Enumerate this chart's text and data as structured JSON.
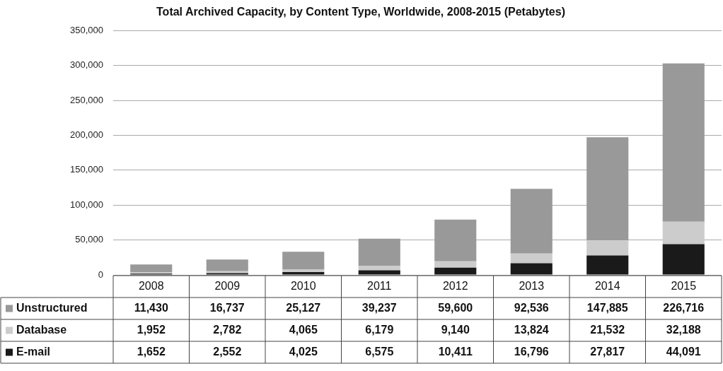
{
  "chart_data": {
    "type": "bar",
    "title": "Total Archived Capacity, by Content Type, Worldwide, 2008-2015 (Petabytes)",
    "categories": [
      "2008",
      "2009",
      "2010",
      "2011",
      "2012",
      "2013",
      "2014",
      "2015"
    ],
    "stacked": true,
    "legend": "bottom",
    "grid": "y",
    "ylim": [
      0,
      350000
    ],
    "yticks": [
      0,
      {
        "value": 50000,
        "label": "50,000"
      },
      {
        "value": 100000,
        "label": "100,000"
      },
      {
        "value": 150000,
        "label": "150,000"
      },
      {
        "value": 200000,
        "label": "200,000"
      },
      {
        "value": 250000,
        "label": "250,000"
      },
      {
        "value": 300000,
        "label": "300,000"
      },
      {
        "value": 350000,
        "label": "350,000"
      }
    ],
    "series": [
      {
        "name": "E-mail",
        "color": "#1a1a1a",
        "values": [
          1652,
          2552,
          4025,
          6575,
          10411,
          16796,
          27817,
          44091
        ],
        "value_labels": [
          "1,652",
          "2,552",
          "4,025",
          "6,575",
          "10,411",
          "16,796",
          "27,817",
          "44,091"
        ]
      },
      {
        "name": "Database",
        "color": "#cccccc",
        "values": [
          1952,
          2782,
          4065,
          6179,
          9140,
          13824,
          21532,
          32188
        ],
        "value_labels": [
          "1,952",
          "2,782",
          "4,065",
          "6,179",
          "9,140",
          "13,824",
          "21,532",
          "32,188"
        ]
      },
      {
        "name": "Unstructured",
        "color": "#999999",
        "values": [
          11430,
          16737,
          25127,
          39237,
          59600,
          92536,
          147885,
          226716
        ],
        "value_labels": [
          "11,430",
          "16,737",
          "25,127",
          "39,237",
          "59,600",
          "92,536",
          "147,885",
          "226,716"
        ]
      }
    ]
  }
}
